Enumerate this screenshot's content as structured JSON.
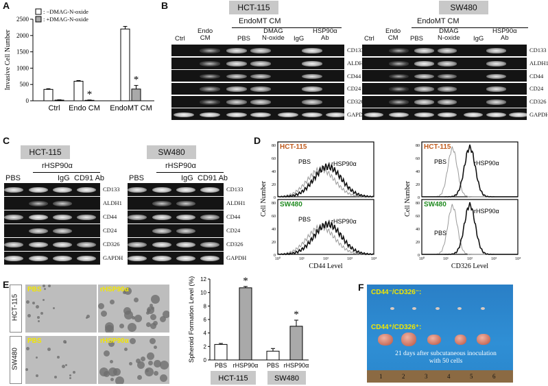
{
  "panels": {
    "A": {
      "letter": "A",
      "legend": [
        "−DMAG-N-oxide",
        "+DMAG-N-oxide"
      ],
      "star": "*",
      "chart_data": {
        "type": "bar",
        "ylabel": "Invasive Cell Number",
        "categories": [
          "Ctrl",
          "Endo CM",
          "EndoMT CM"
        ],
        "series": [
          {
            "name": "−DMAG-N-oxide",
            "color": "#ffffff",
            "values": [
              350,
              600,
              2200
            ],
            "errors": [
              20,
              20,
              80
            ]
          },
          {
            "name": "+DMAG-N-oxide",
            "color": "#a9a9a9",
            "values": [
              20,
              15,
              360
            ],
            "errors": [
              10,
              10,
              110
            ]
          }
        ],
        "ylim": [
          0,
          2500
        ],
        "yticks": [
          0,
          500,
          1000,
          1500,
          2000,
          2500
        ]
      }
    },
    "B": {
      "letter": "B",
      "cell_lines": [
        "HCT-115",
        "SW480"
      ],
      "group_label": "EndoMT CM",
      "lanes": [
        "Ctrl",
        "Endo CM",
        "PBS",
        "DMAG N-oxide",
        "IgG",
        "HSP90α Ab"
      ],
      "markers": [
        "CD133",
        "ALDH1",
        "CD44",
        "CD24",
        "CD326",
        "GAPDH"
      ]
    },
    "C": {
      "letter": "C",
      "cell_lines": [
        "HCT-115",
        "SW480"
      ],
      "group_label": "rHSP90α",
      "lanes": [
        "PBS",
        "IgG",
        "CD91 Ab"
      ],
      "markers": [
        "CD133",
        "ALDH1",
        "CD44",
        "CD24",
        "CD326",
        "GAPDH"
      ]
    },
    "D": {
      "letter": "D",
      "ylabel": "Cell Number",
      "xlabels": [
        "CD44 Level",
        "CD326 Level"
      ],
      "cell_lines": [
        "HCT-115",
        "SW480"
      ],
      "curve_labels": [
        "PBS",
        "rHSP90α"
      ],
      "xticks": [
        "10⁰",
        "10¹",
        "10²",
        "10³",
        "10⁴"
      ],
      "yticks": [
        "0",
        "20",
        "40",
        "60",
        "80"
      ],
      "line_color": "#c05a1c",
      "sw_color": "#1f8a1f"
    },
    "E": {
      "letter": "E",
      "row_labels": [
        "HCT-115",
        "SW480"
      ],
      "image_labels": [
        "PBS",
        "rHSP90α"
      ],
      "label_color": "#f2e600",
      "star": "*",
      "chart_data": {
        "type": "bar",
        "ylabel": "Spheroid Formation Level (%)",
        "groups": [
          "HCT-115",
          "SW480"
        ],
        "categories": [
          "PBS",
          "rHSP90α",
          "PBS",
          "rHSP90α"
        ],
        "values": [
          2.3,
          10.7,
          1.3,
          5.0
        ],
        "errors": [
          0.15,
          0.2,
          0.4,
          0.9
        ],
        "colors": [
          "#ffffff",
          "#a9a9a9",
          "#ffffff",
          "#a9a9a9"
        ],
        "ylim": [
          0,
          12
        ],
        "yticks": [
          0,
          2,
          4,
          6,
          8,
          10,
          12
        ]
      }
    },
    "F": {
      "letter": "F",
      "label_neg": "CD44⁻/CD326⁻:",
      "label_pos": "CD44⁺/CD326⁺:",
      "caption": "21 days after subcutaneous inoculation with 50 cells",
      "ruler": [
        "1",
        "2",
        "3",
        "4",
        "5",
        "6"
      ]
    }
  }
}
